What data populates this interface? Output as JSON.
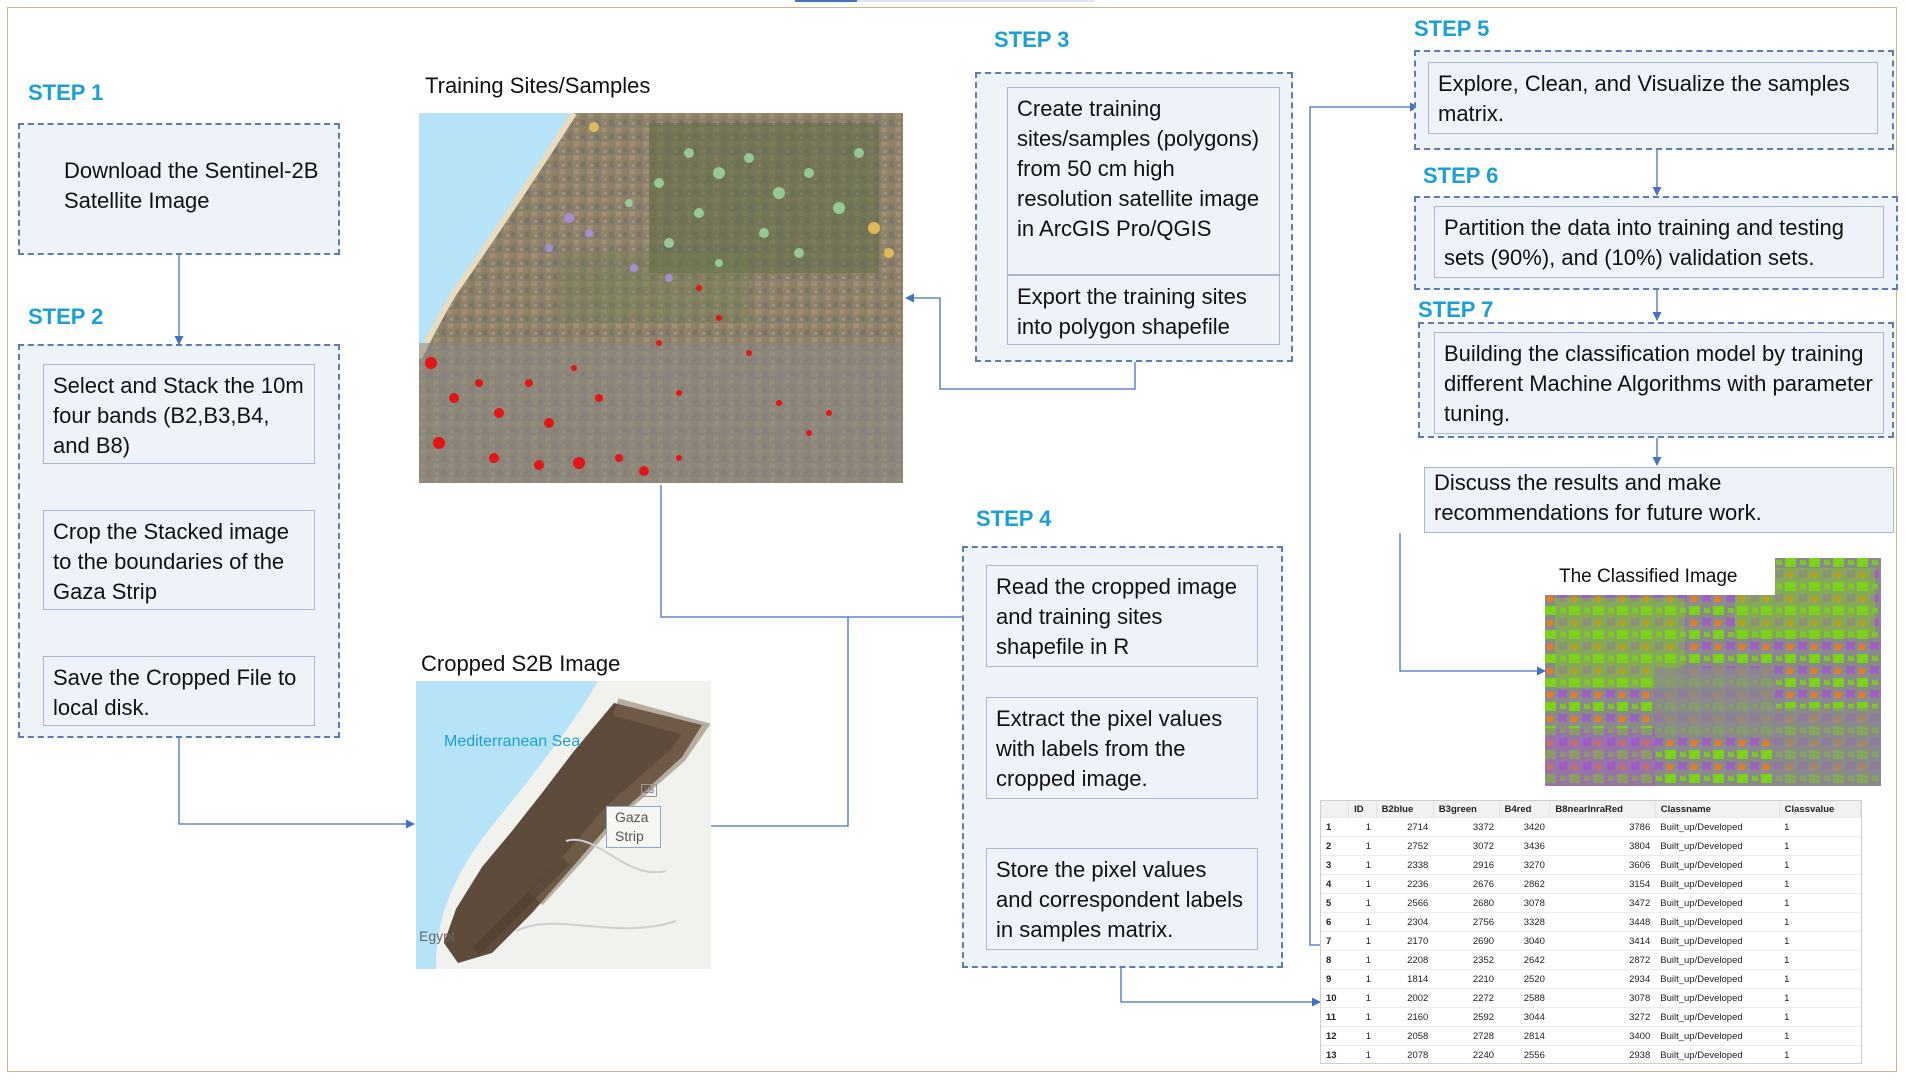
{
  "steps": {
    "s1": {
      "label": "STEP 1",
      "box": "Download the Sentinel-2B Satellite Image"
    },
    "s2": {
      "label": "STEP 2",
      "boxes": [
        "Select and Stack the 10m four bands (B2,B3,B4, and B8)",
        "Crop the Stacked image to the boundaries of the Gaza Strip",
        "Save the Cropped File to local disk."
      ]
    },
    "s3": {
      "label": "STEP 3",
      "boxes": [
        "Create training sites/samples (polygons) from 50 cm high resolution satellite image in ArcGIS Pro/QGIS",
        "Export the training sites into polygon shapefile"
      ]
    },
    "s4": {
      "label": "STEP 4",
      "boxes": [
        "Read the cropped image and training sites shapefile in R",
        "Extract the pixel values with labels from the cropped image.",
        "Store the pixel values and correspondent labels in samples matrix."
      ]
    },
    "s5": {
      "label": "STEP 5",
      "box": "Explore, Clean, and Visualize the samples matrix."
    },
    "s6": {
      "label": "STEP 6",
      "box": "Partition the data into training and testing sets (90%), and (10%) validation sets."
    },
    "s7": {
      "label": "STEP 7",
      "box": "Building the classification model by training different Machine Algorithms with parameter tuning."
    },
    "final": "Discuss the results and make recommendations for future work."
  },
  "images": {
    "training": {
      "caption": "Training Sites/Samples"
    },
    "cropped": {
      "caption": "Cropped S2B Image",
      "sea_label": "Mediterranean Sea",
      "gaza_label": "Gaza Strip",
      "egypt_label": "Egypt",
      "route_label": "25"
    },
    "classified": {
      "caption": "The Classified Image"
    }
  },
  "matrix": {
    "headers": [
      "",
      "ID",
      "B2blue",
      "B3green",
      "B4red",
      "B8nearInraRed",
      "Classname",
      "Classvalue"
    ],
    "rows": [
      [
        "1",
        "1",
        "2714",
        "3372",
        "3420",
        "3786",
        "Built_up/Developed",
        "1"
      ],
      [
        "2",
        "1",
        "2752",
        "3072",
        "3436",
        "3804",
        "Built_up/Developed",
        "1"
      ],
      [
        "3",
        "1",
        "2338",
        "2916",
        "3270",
        "3606",
        "Built_up/Developed",
        "1"
      ],
      [
        "4",
        "1",
        "2236",
        "2676",
        "2862",
        "3154",
        "Built_up/Developed",
        "1"
      ],
      [
        "5",
        "1",
        "2566",
        "2680",
        "3078",
        "3472",
        "Built_up/Developed",
        "1"
      ],
      [
        "6",
        "1",
        "2304",
        "2756",
        "3328",
        "3448",
        "Built_up/Developed",
        "1"
      ],
      [
        "7",
        "1",
        "2170",
        "2690",
        "3040",
        "3414",
        "Built_up/Developed",
        "1"
      ],
      [
        "8",
        "1",
        "2208",
        "2352",
        "2642",
        "2872",
        "Built_up/Developed",
        "1"
      ],
      [
        "9",
        "1",
        "1814",
        "2210",
        "2520",
        "2934",
        "Built_up/Developed",
        "1"
      ],
      [
        "10",
        "1",
        "2002",
        "2272",
        "2588",
        "3078",
        "Built_up/Developed",
        "1"
      ],
      [
        "11",
        "1",
        "2160",
        "2592",
        "3044",
        "3272",
        "Built_up/Developed",
        "1"
      ],
      [
        "12",
        "1",
        "2058",
        "2728",
        "2814",
        "3400",
        "Built_up/Developed",
        "1"
      ],
      [
        "13",
        "1",
        "2078",
        "2240",
        "2556",
        "2938",
        "Built_up/Developed",
        "1"
      ]
    ]
  },
  "colors": {
    "step_label": "#1aa0d8",
    "connector": "#4472c4",
    "panel_bg": "#eef3fa",
    "frame": "#d2b48c"
  }
}
